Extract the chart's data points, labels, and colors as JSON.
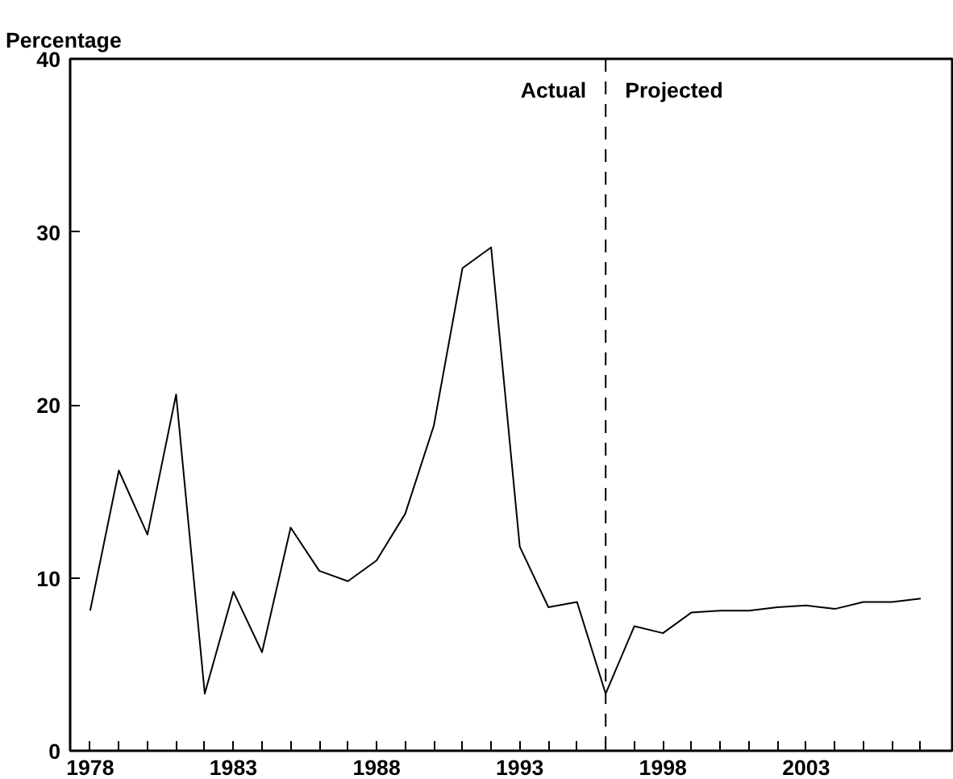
{
  "chart_data": {
    "type": "line",
    "ylabel": "Percentage",
    "annotations": [
      "Actual",
      "Projected"
    ],
    "x": [
      1978,
      1979,
      1980,
      1981,
      1982,
      1983,
      1984,
      1985,
      1986,
      1987,
      1988,
      1989,
      1990,
      1991,
      1992,
      1993,
      1994,
      1995,
      1996,
      1997,
      1998,
      1999,
      2000,
      2001,
      2002,
      2003,
      2004,
      2005,
      2006,
      2007
    ],
    "series": [
      {
        "color": "#000000",
        "values": [
          8.1,
          16.2,
          12.5,
          20.6,
          3.3,
          9.2,
          5.7,
          12.9,
          10.4,
          9.8,
          11.0,
          13.7,
          18.8,
          27.9,
          29.1,
          11.8,
          8.3,
          8.6,
          3.3,
          7.2,
          6.8,
          8.0,
          8.1,
          8.1,
          8.3,
          8.4,
          8.2,
          8.6,
          8.6,
          8.8
        ]
      }
    ],
    "xlim": [
      1977.3,
      2008.1
    ],
    "ylim": [
      0,
      40
    ],
    "xticks": [
      1978,
      {
        "value": 1979,
        "label": null
      },
      {
        "value": 1980,
        "label": null
      },
      {
        "value": 1981,
        "label": null
      },
      {
        "value": 1982,
        "label": null
      },
      1983,
      {
        "value": 1984,
        "label": null
      },
      {
        "value": 1985,
        "label": null
      },
      {
        "value": 1986,
        "label": null
      },
      {
        "value": 1987,
        "label": null
      },
      1988,
      {
        "value": 1989,
        "label": null
      },
      {
        "value": 1990,
        "label": null
      },
      {
        "value": 1991,
        "label": null
      },
      {
        "value": 1992,
        "label": null
      },
      1993,
      {
        "value": 1994,
        "label": null
      },
      {
        "value": 1995,
        "label": null
      },
      {
        "value": 1996,
        "label": null
      },
      {
        "value": 1997,
        "label": null
      },
      1998,
      {
        "value": 1999,
        "label": null
      },
      {
        "value": 2000,
        "label": null
      },
      {
        "value": 2001,
        "label": null
      },
      {
        "value": 2002,
        "label": null
      },
      2003,
      {
        "value": 2004,
        "label": null
      },
      {
        "value": 2005,
        "label": null
      },
      {
        "value": 2006,
        "label": null
      },
      {
        "value": 2007,
        "label": null
      }
    ],
    "yticks": [
      0,
      10,
      20,
      30,
      40
    ],
    "ref_lines": [
      {
        "axis": "x",
        "value": 1996,
        "color": "#000000",
        "line_style": "dashed"
      }
    ],
    "line_style": "solid"
  }
}
